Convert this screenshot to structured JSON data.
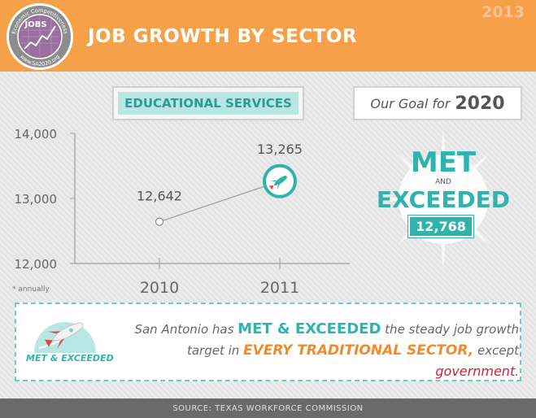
{
  "header": {
    "title": "JOB GROWTH BY SECTOR",
    "year": "2013",
    "logo": {
      "ring_top": "Economic Competitiveness",
      "ring_bottom": "www.SA2020.org",
      "center": "JOBS"
    }
  },
  "category": {
    "label": "EDUCATIONAL SERVICES"
  },
  "goal": {
    "prefix": "Our Goal for",
    "year": "2020",
    "status_line1": "MET",
    "status_and": "AND",
    "status_line2": "EXCEEDED",
    "value": "12,768"
  },
  "chart_data": {
    "type": "line",
    "categories": [
      "2010",
      "2011"
    ],
    "values": [
      12642,
      13265
    ],
    "value_labels": [
      "12,642",
      "13,265"
    ],
    "y_ticks": [
      12000,
      13000,
      14000
    ],
    "y_tick_labels": [
      "12,000",
      "13,000",
      "14,000"
    ],
    "ylim": [
      12000,
      14000
    ],
    "title": "",
    "xlabel": "",
    "ylabel": "",
    "grid": false,
    "note": "* annually",
    "colors": {
      "line": "#9a9a9a",
      "marker": "#2fb3ad",
      "axis": "#aaaaaa"
    }
  },
  "callout": {
    "badge_label": "MET & EXCEEDED",
    "text_1": "San Antonio has ",
    "text_emph_1": "MET & EXCEEDED",
    "text_2": " the steady job growth target in ",
    "text_emph_2": "EVERY TRADITIONAL SECTOR,",
    "text_3": " except ",
    "text_emph_3": "government",
    "text_4": "."
  },
  "footer": {
    "source": "SOURCE: TEXAS WORKFORCE COMMISSION"
  },
  "colors": {
    "header_orange": "#f7a04a",
    "teal": "#2fb3ad",
    "light_teal": "#b7e6e4",
    "orange_text": "#f08a2a",
    "red_text": "#cf1f3a",
    "footer_gray": "#6a6a6a"
  }
}
